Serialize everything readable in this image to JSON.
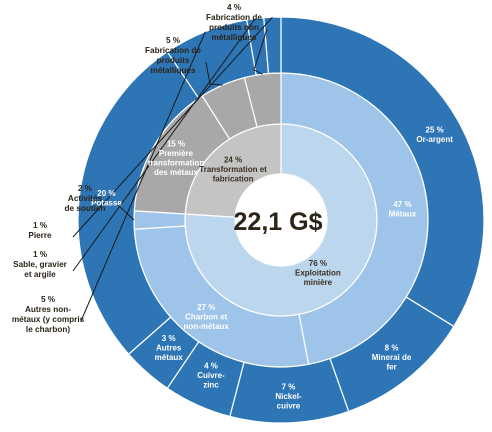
{
  "chart_data": {
    "type": "pie",
    "subtype": "sunburst",
    "center_label": "22,1 G$",
    "rings": {
      "inner": [
        {
          "pct": 76,
          "pct_label": "76 %",
          "label": "Exploitation minière",
          "lines": [
            "Exploitation",
            "minière"
          ],
          "color": "#bcd6ee"
        },
        {
          "pct": 24,
          "pct_label": "24 %",
          "label": "Transformation et fabrication",
          "lines": [
            "Transformation et",
            "fabrication"
          ],
          "color": "#c4c4c4"
        }
      ],
      "middle": [
        {
          "pct": 47,
          "pct_label": "47 %",
          "label": "Métaux",
          "lines": [
            "Métaux"
          ],
          "color": "#9fc4ea"
        },
        {
          "pct": 27,
          "pct_label": "27 %",
          "label": "Charbon et non-métaux",
          "lines": [
            "Charbon et",
            "non-métaux"
          ],
          "color": "#9fc4ea"
        },
        {
          "pct": 2,
          "pct_label": "2 %",
          "label": "Activités de soutien",
          "lines": [
            "Activités",
            "de soutien"
          ],
          "color": "#9fc4ea"
        },
        {
          "pct": 15,
          "pct_label": "15 %",
          "label": "Première transformation des métaux",
          "lines": [
            "Première",
            "transformation",
            "des métaux"
          ],
          "color": "#a8a8a8"
        },
        {
          "pct": 5,
          "pct_label": "5 %",
          "label": "Fabrication de produits métalliques",
          "lines": [
            "Fabrication de",
            "produits",
            "métalliques"
          ],
          "color": "#a8a8a8"
        },
        {
          "pct": 4,
          "pct_label": "4 %",
          "label": "Fabrication de produits non métalliques",
          "lines": [
            "Fabrication de",
            "produits non",
            "métalliques"
          ],
          "color": "#a8a8a8"
        }
      ],
      "outer": [
        {
          "pct": 25,
          "pct_label": "25 %",
          "label": "Or-argent",
          "lines": [
            "Or-argent"
          ],
          "color": "#2e75b6"
        },
        {
          "pct": 8,
          "pct_label": "8 %",
          "label": "Minerai de fer",
          "lines": [
            "Minerai de",
            "fer"
          ],
          "color": "#2e75b6"
        },
        {
          "pct": 7,
          "pct_label": "7 %",
          "label": "Nickel-cuivre",
          "lines": [
            "Nickel-",
            "cuivre"
          ],
          "color": "#2e75b6"
        },
        {
          "pct": 4,
          "pct_label": "4 %",
          "label": "Cuivre-zinc",
          "lines": [
            "Cuivre-",
            "zinc"
          ],
          "color": "#2e75b6"
        },
        {
          "pct": 3,
          "pct_label": "3 %",
          "label": "Autres métaux",
          "lines": [
            "Autres",
            "métaux"
          ],
          "color": "#2e75b6"
        },
        {
          "pct": 20,
          "pct_label": "20 %",
          "label": "Potasse",
          "lines": [
            "Potasse"
          ],
          "color": "#2e75b6"
        },
        {
          "pct": 5,
          "pct_label": "5 %",
          "label": "Autres non-métaux (y compris le charbon)",
          "lines": [
            "Autres non-",
            "métaux (y compris",
            "le charbon)"
          ],
          "color": "#2e75b6"
        },
        {
          "pct": 1,
          "pct_label": "1 %",
          "label": "Sable, gravier et argile",
          "lines": [
            "Sable, gravier",
            "et argile"
          ],
          "color": "#2e75b6"
        },
        {
          "pct": 1,
          "pct_label": "1 %",
          "label": "Pierre",
          "lines": [
            "Pierre"
          ],
          "color": "#2e75b6"
        }
      ]
    },
    "palette": {
      "outer_blue": "#2e75b6",
      "mid_blue": "#9fc4ea",
      "inner_blue": "#bcd6ee",
      "mid_gray": "#a8a8a8",
      "inner_gray": "#c4c4c4",
      "outer_gap": "#ffffff"
    }
  }
}
